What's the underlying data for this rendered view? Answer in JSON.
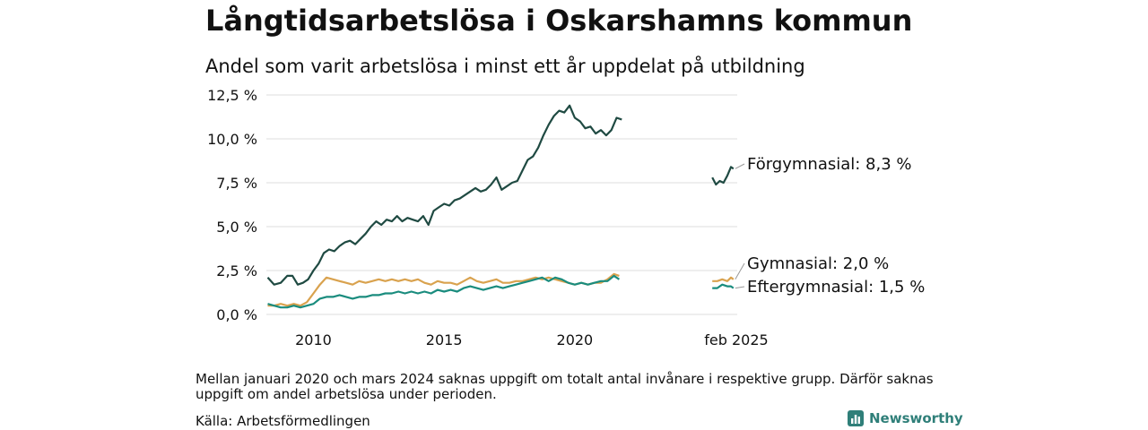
{
  "title": "Långtidsarbetslösa i Oskarshamns kommun",
  "subtitle": "Andel som varit arbetslösa i minst ett år uppdelat på utbildning",
  "note": "Mellan januari 2020 och mars 2024 saknas uppgift om totalt antal invånare i respektive grupp. Därför saknas uppgift om andel arbetslösa under perioden.",
  "source": "Källa: Arbetsförmedlingen",
  "brand": "Newsworthy",
  "chart_data": {
    "type": "line",
    "title": "Långtidsarbetslösa i Oskarshamns kommun",
    "subtitle": "Andel som varit arbetslösa i minst ett år uppdelat på utbildning",
    "ylim": [
      0,
      12.5
    ],
    "y_ticks": [
      0,
      2.5,
      5,
      7.5,
      10,
      12.5
    ],
    "y_tick_labels": [
      "0,0 %",
      "2,5 %",
      "5,0 %",
      "7,5 %",
      "10,0 %",
      "12,5 %"
    ],
    "x_ticks": [
      2010,
      2015,
      2020
    ],
    "x_tick_labels": [
      "2010",
      "2015",
      "2020"
    ],
    "segment2_label": "feb 2025",
    "grid": true,
    "series": [
      {
        "name": "Förgymnasial",
        "color": "#1f4a42",
        "end_label": "Förgymnasial: 8,3 %",
        "segment1": [
          [
            2008.25,
            2.1
          ],
          [
            2008.5,
            1.7
          ],
          [
            2008.75,
            1.8
          ],
          [
            2009.0,
            2.2
          ],
          [
            2009.2,
            2.2
          ],
          [
            2009.4,
            1.7
          ],
          [
            2009.6,
            1.8
          ],
          [
            2009.8,
            2.0
          ],
          [
            2010.0,
            2.5
          ],
          [
            2010.2,
            2.9
          ],
          [
            2010.4,
            3.5
          ],
          [
            2010.6,
            3.7
          ],
          [
            2010.8,
            3.6
          ],
          [
            2011.0,
            3.9
          ],
          [
            2011.2,
            4.1
          ],
          [
            2011.4,
            4.2
          ],
          [
            2011.6,
            4.0
          ],
          [
            2011.8,
            4.3
          ],
          [
            2012.0,
            4.6
          ],
          [
            2012.2,
            5.0
          ],
          [
            2012.4,
            5.3
          ],
          [
            2012.6,
            5.1
          ],
          [
            2012.8,
            5.4
          ],
          [
            2013.0,
            5.3
          ],
          [
            2013.2,
            5.6
          ],
          [
            2013.4,
            5.3
          ],
          [
            2013.6,
            5.5
          ],
          [
            2013.8,
            5.4
          ],
          [
            2014.0,
            5.3
          ],
          [
            2014.2,
            5.6
          ],
          [
            2014.4,
            5.1
          ],
          [
            2014.6,
            5.9
          ],
          [
            2014.8,
            6.1
          ],
          [
            2015.0,
            6.3
          ],
          [
            2015.2,
            6.2
          ],
          [
            2015.4,
            6.5
          ],
          [
            2015.6,
            6.6
          ],
          [
            2015.8,
            6.8
          ],
          [
            2016.0,
            7.0
          ],
          [
            2016.2,
            7.2
          ],
          [
            2016.4,
            7.0
          ],
          [
            2016.6,
            7.1
          ],
          [
            2016.8,
            7.4
          ],
          [
            2017.0,
            7.8
          ],
          [
            2017.2,
            7.1
          ],
          [
            2017.4,
            7.3
          ],
          [
            2017.6,
            7.5
          ],
          [
            2017.8,
            7.6
          ],
          [
            2018.0,
            8.2
          ],
          [
            2018.2,
            8.8
          ],
          [
            2018.4,
            9.0
          ],
          [
            2018.6,
            9.5
          ],
          [
            2018.8,
            10.2
          ],
          [
            2019.0,
            10.8
          ],
          [
            2019.2,
            11.3
          ],
          [
            2019.4,
            11.6
          ],
          [
            2019.6,
            11.5
          ],
          [
            2019.8,
            11.9
          ],
          [
            2020.0,
            11.2
          ],
          [
            2020.2,
            11.0
          ],
          [
            2020.4,
            10.6
          ],
          [
            2020.6,
            10.7
          ],
          [
            2020.8,
            10.3
          ],
          [
            2021.0,
            10.5
          ],
          [
            2021.2,
            10.2
          ],
          [
            2021.4,
            10.5
          ],
          [
            2021.6,
            11.2
          ],
          [
            2021.8,
            11.1
          ]
        ],
        "segment2": [
          [
            2024.25,
            7.8
          ],
          [
            2024.4,
            7.4
          ],
          [
            2024.55,
            7.6
          ],
          [
            2024.7,
            7.5
          ],
          [
            2024.85,
            7.9
          ],
          [
            2025.0,
            8.4
          ],
          [
            2025.1,
            8.3
          ]
        ]
      },
      {
        "name": "Gymnasial",
        "color": "#d9a24e",
        "end_label": "Gymnasial: 2,0 %",
        "segment1": [
          [
            2008.25,
            0.5
          ],
          [
            2008.5,
            0.5
          ],
          [
            2008.75,
            0.6
          ],
          [
            2009.0,
            0.5
          ],
          [
            2009.25,
            0.6
          ],
          [
            2009.5,
            0.5
          ],
          [
            2009.75,
            0.7
          ],
          [
            2010.0,
            1.2
          ],
          [
            2010.25,
            1.7
          ],
          [
            2010.5,
            2.1
          ],
          [
            2010.75,
            2.0
          ],
          [
            2011.0,
            1.9
          ],
          [
            2011.25,
            1.8
          ],
          [
            2011.5,
            1.7
          ],
          [
            2011.75,
            1.9
          ],
          [
            2012.0,
            1.8
          ],
          [
            2012.25,
            1.9
          ],
          [
            2012.5,
            2.0
          ],
          [
            2012.75,
            1.9
          ],
          [
            2013.0,
            2.0
          ],
          [
            2013.25,
            1.9
          ],
          [
            2013.5,
            2.0
          ],
          [
            2013.75,
            1.9
          ],
          [
            2014.0,
            2.0
          ],
          [
            2014.25,
            1.8
          ],
          [
            2014.5,
            1.7
          ],
          [
            2014.75,
            1.9
          ],
          [
            2015.0,
            1.8
          ],
          [
            2015.25,
            1.8
          ],
          [
            2015.5,
            1.7
          ],
          [
            2015.75,
            1.9
          ],
          [
            2016.0,
            2.1
          ],
          [
            2016.25,
            1.9
          ],
          [
            2016.5,
            1.8
          ],
          [
            2016.75,
            1.9
          ],
          [
            2017.0,
            2.0
          ],
          [
            2017.25,
            1.8
          ],
          [
            2017.5,
            1.8
          ],
          [
            2017.75,
            1.9
          ],
          [
            2018.0,
            1.9
          ],
          [
            2018.25,
            2.0
          ],
          [
            2018.5,
            2.1
          ],
          [
            2018.75,
            2.0
          ],
          [
            2019.0,
            2.1
          ],
          [
            2019.25,
            2.0
          ],
          [
            2019.5,
            1.9
          ],
          [
            2019.75,
            1.8
          ],
          [
            2020.0,
            1.7
          ],
          [
            2020.25,
            1.8
          ],
          [
            2020.5,
            1.7
          ],
          [
            2020.75,
            1.8
          ],
          [
            2021.0,
            1.8
          ],
          [
            2021.25,
            2.0
          ],
          [
            2021.5,
            2.3
          ],
          [
            2021.7,
            2.2
          ]
        ],
        "segment2": [
          [
            2024.25,
            1.9
          ],
          [
            2024.45,
            1.9
          ],
          [
            2024.65,
            2.0
          ],
          [
            2024.85,
            1.9
          ],
          [
            2025.0,
            2.1
          ],
          [
            2025.1,
            2.0
          ]
        ]
      },
      {
        "name": "Eftergymnasial",
        "color": "#1a8c7e",
        "end_label": "Eftergymnasial: 1,5 %",
        "segment1": [
          [
            2008.25,
            0.6
          ],
          [
            2008.5,
            0.5
          ],
          [
            2008.75,
            0.4
          ],
          [
            2009.0,
            0.4
          ],
          [
            2009.25,
            0.5
          ],
          [
            2009.5,
            0.4
          ],
          [
            2009.75,
            0.5
          ],
          [
            2010.0,
            0.6
          ],
          [
            2010.25,
            0.9
          ],
          [
            2010.5,
            1.0
          ],
          [
            2010.75,
            1.0
          ],
          [
            2011.0,
            1.1
          ],
          [
            2011.25,
            1.0
          ],
          [
            2011.5,
            0.9
          ],
          [
            2011.75,
            1.0
          ],
          [
            2012.0,
            1.0
          ],
          [
            2012.25,
            1.1
          ],
          [
            2012.5,
            1.1
          ],
          [
            2012.75,
            1.2
          ],
          [
            2013.0,
            1.2
          ],
          [
            2013.25,
            1.3
          ],
          [
            2013.5,
            1.2
          ],
          [
            2013.75,
            1.3
          ],
          [
            2014.0,
            1.2
          ],
          [
            2014.25,
            1.3
          ],
          [
            2014.5,
            1.2
          ],
          [
            2014.75,
            1.4
          ],
          [
            2015.0,
            1.3
          ],
          [
            2015.25,
            1.4
          ],
          [
            2015.5,
            1.3
          ],
          [
            2015.75,
            1.5
          ],
          [
            2016.0,
            1.6
          ],
          [
            2016.25,
            1.5
          ],
          [
            2016.5,
            1.4
          ],
          [
            2016.75,
            1.5
          ],
          [
            2017.0,
            1.6
          ],
          [
            2017.25,
            1.5
          ],
          [
            2017.5,
            1.6
          ],
          [
            2017.75,
            1.7
          ],
          [
            2018.0,
            1.8
          ],
          [
            2018.25,
            1.9
          ],
          [
            2018.5,
            2.0
          ],
          [
            2018.75,
            2.1
          ],
          [
            2019.0,
            1.9
          ],
          [
            2019.25,
            2.1
          ],
          [
            2019.5,
            2.0
          ],
          [
            2019.75,
            1.8
          ],
          [
            2020.0,
            1.7
          ],
          [
            2020.25,
            1.8
          ],
          [
            2020.5,
            1.7
          ],
          [
            2020.75,
            1.8
          ],
          [
            2021.0,
            1.9
          ],
          [
            2021.25,
            1.9
          ],
          [
            2021.5,
            2.2
          ],
          [
            2021.7,
            2.0
          ]
        ],
        "segment2": [
          [
            2024.25,
            1.5
          ],
          [
            2024.45,
            1.5
          ],
          [
            2024.65,
            1.7
          ],
          [
            2024.85,
            1.6
          ],
          [
            2025.0,
            1.6
          ],
          [
            2025.1,
            1.5
          ]
        ]
      }
    ]
  }
}
